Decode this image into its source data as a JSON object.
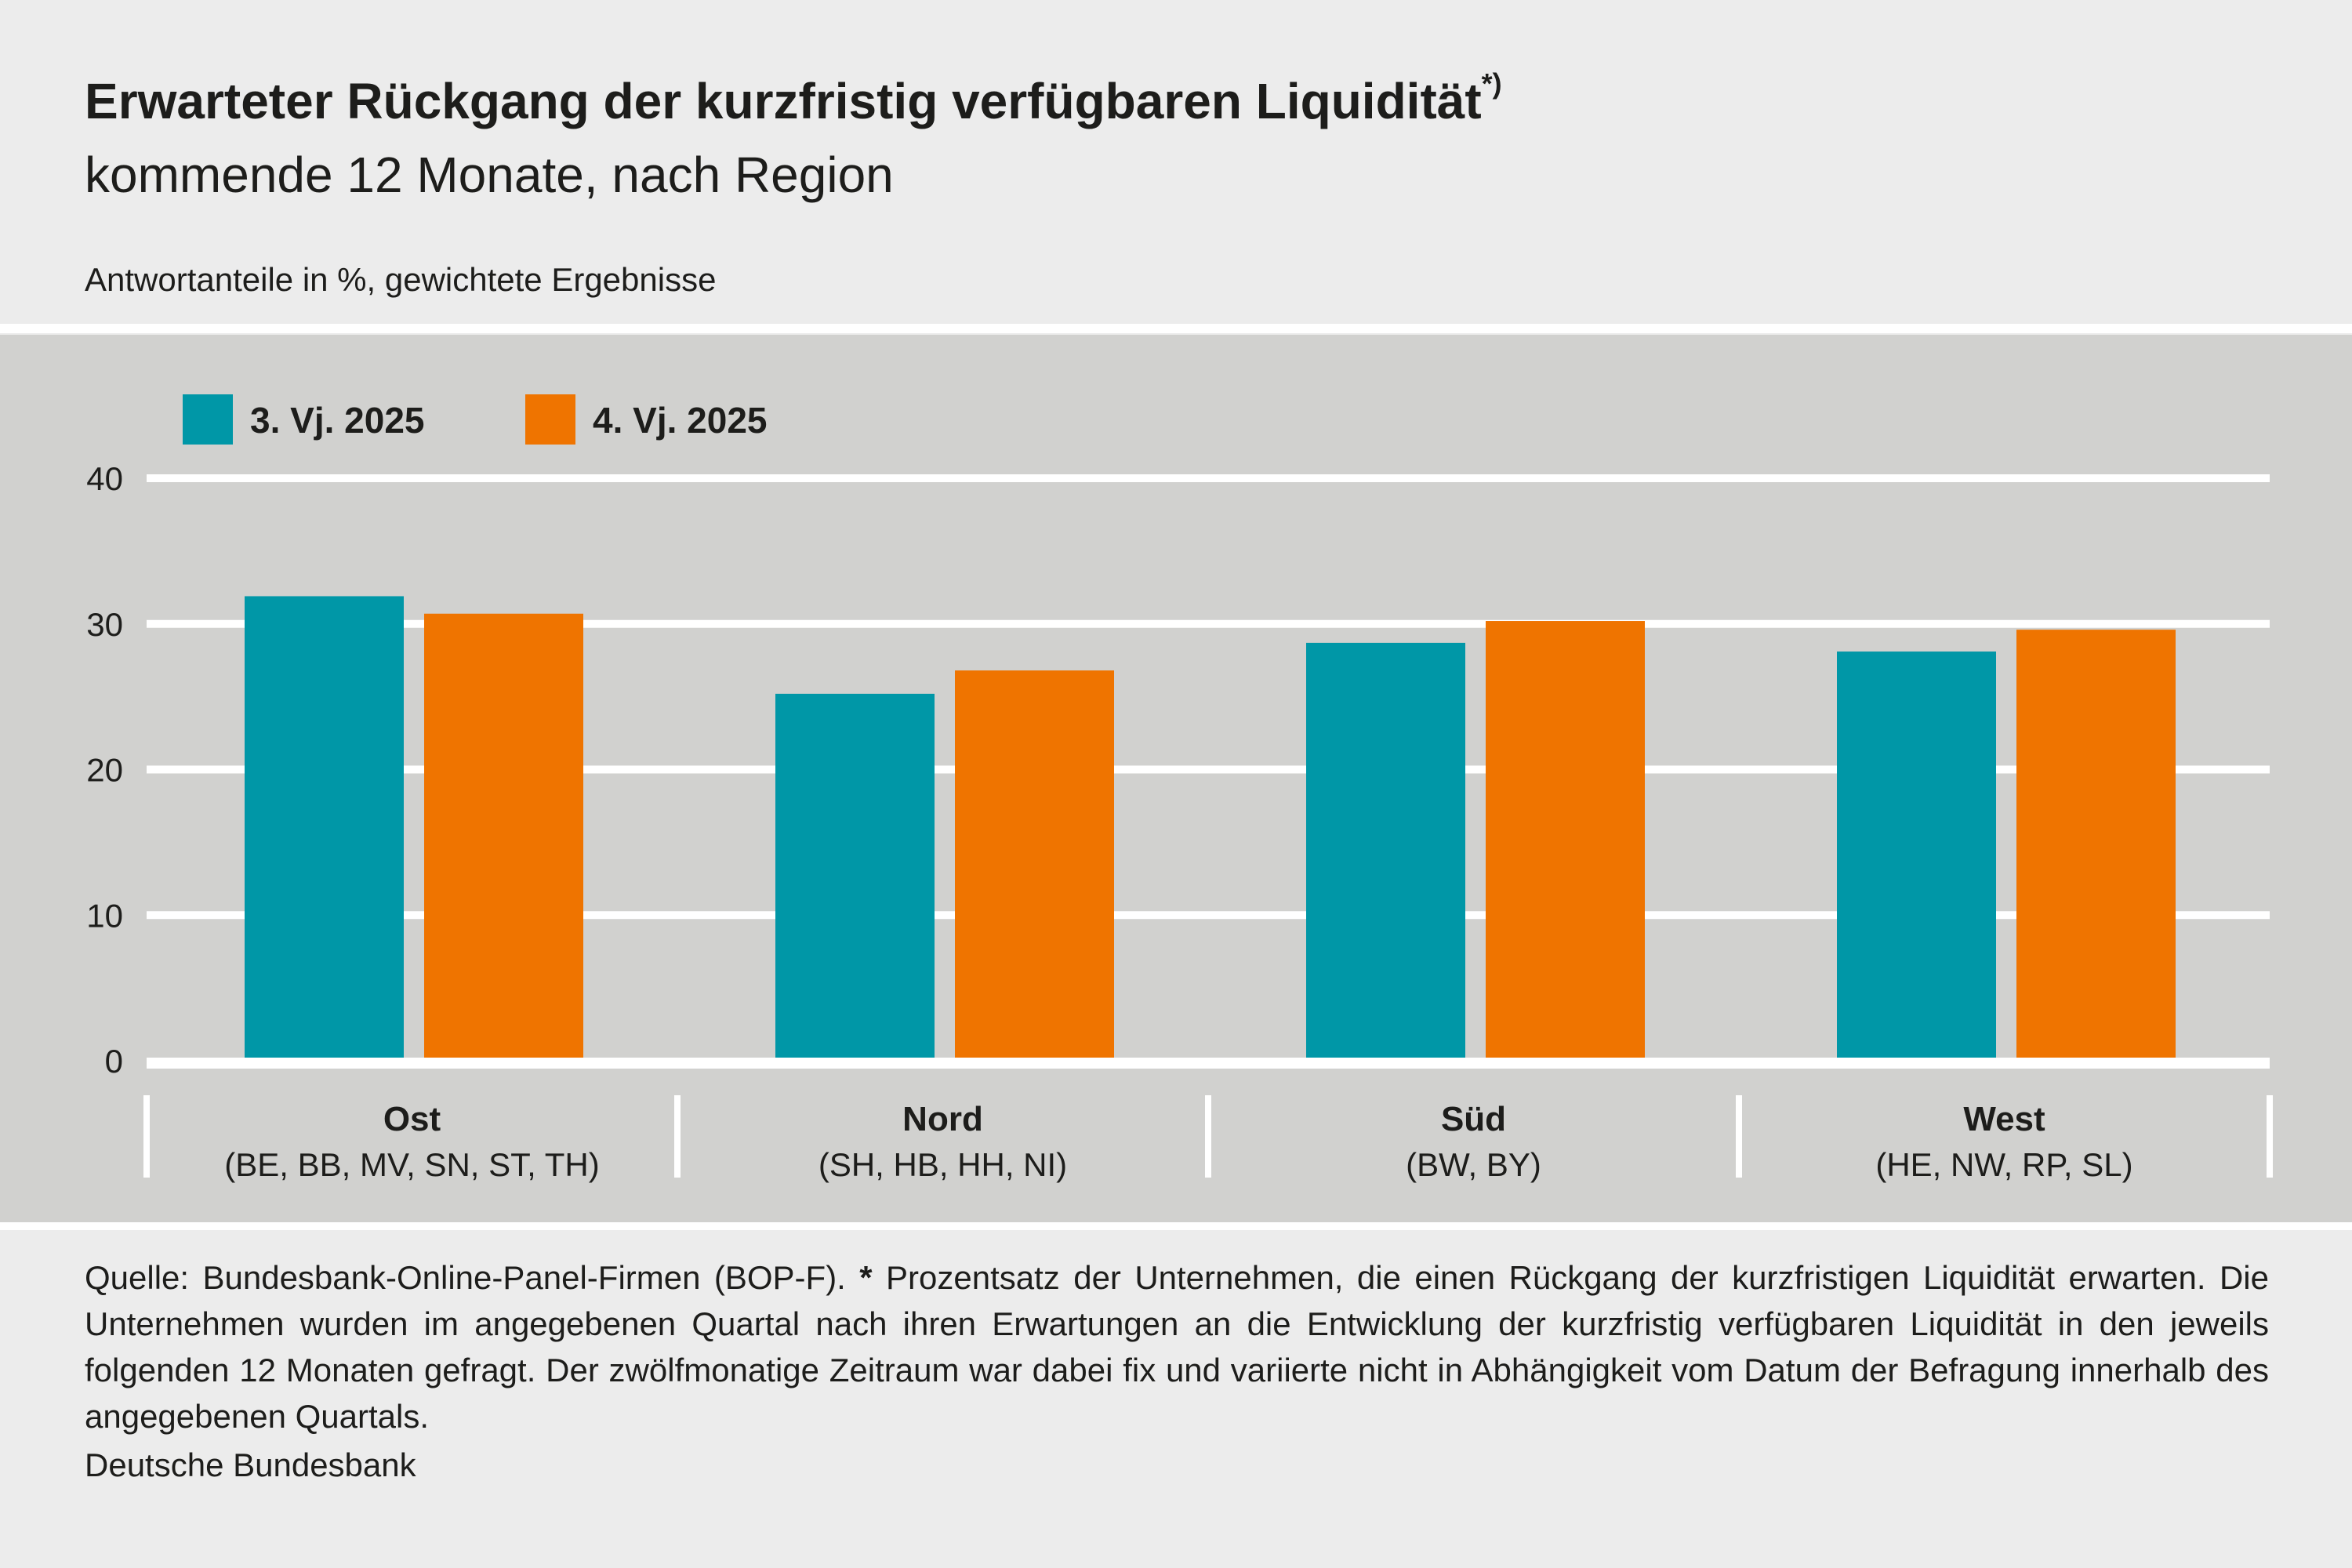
{
  "header": {
    "title": "Erwarteter Rückgang der kurzfristig verfügbaren Liquidität",
    "title_sup": "*)",
    "subtitle": "kommende 12 Monate, nach Region",
    "unit": "Antwortanteile in %, gewichtete Ergebnisse"
  },
  "chart_data": {
    "type": "bar",
    "title": "Erwarteter Rückgang der kurzfristig verfügbaren Liquidität",
    "subtitle": "kommende 12 Monate, nach Region",
    "ylabel": "Antwortanteile in %, gewichtete Ergebnisse",
    "categories": [
      "Ost",
      "Nord",
      "Süd",
      "West"
    ],
    "category_sublabels": [
      "(BE, BB, MV, SN, ST, TH)",
      "(SH, HB, HH, NI)",
      "(BW, BY)",
      "(HE, NW, RP, SL)"
    ],
    "series": [
      {
        "name": "3. Vj. 2025",
        "color": "#0097a7",
        "values": [
          31.9,
          25.2,
          28.7,
          28.1
        ]
      },
      {
        "name": "4. Vj. 2025",
        "color": "#ef7400",
        "values": [
          30.7,
          26.8,
          30.2,
          29.6
        ]
      }
    ],
    "ylim": [
      0,
      40
    ],
    "yticks": [
      "0",
      "10",
      "20",
      "30",
      "40"
    ],
    "grid": true,
    "legend": "top-left"
  },
  "footer": {
    "note_prefix": "Quelle: Bundesbank-Online-Panel-Firmen (BOP-F). ",
    "note_star": "*",
    "note": " Prozentsatz der Unternehmen, die einen Rückgang der kurzfristigen Liquidität erwarten. Die Unternehmen wurden im angegebenen Quartal nach ihren Erwartungen an die Entwicklung der kurzfristig verfügbaren Liquidität in den jeweils folgenden 12 Monaten gefragt. Der zwölfmonatige Zeitraum war dabei fix und variierte nicht in Abhängigkeit vom Datum der Befragung innerhalb des angegebenen Quartals.",
    "source": "Deutsche Bundesbank"
  },
  "colors": {
    "background": "#ececec",
    "panel": "#d1d1cf",
    "grid": "#ffffff"
  }
}
